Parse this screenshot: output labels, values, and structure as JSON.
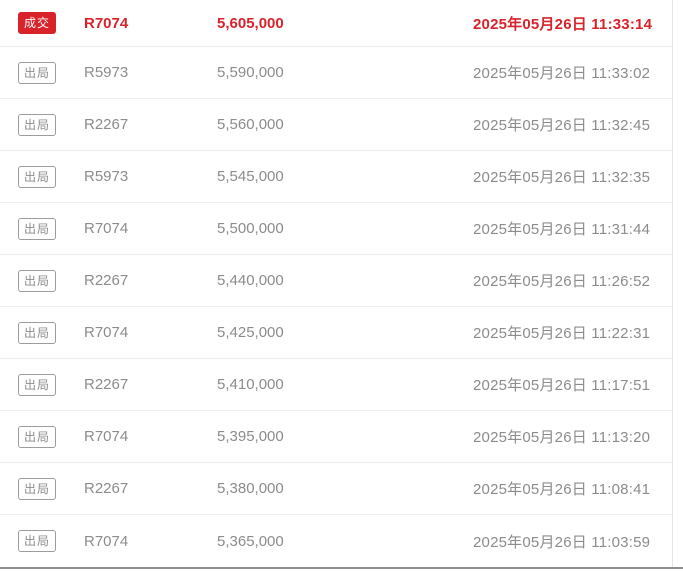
{
  "bid_records": {
    "rows": [
      {
        "status": "成交",
        "type": "deal",
        "bidder": "R7074",
        "price": "5,605,000",
        "time": "2025年05月26日 11:33:14"
      },
      {
        "status": "出局",
        "type": "out",
        "bidder": "R5973",
        "price": "5,590,000",
        "time": "2025年05月26日 11:33:02"
      },
      {
        "status": "出局",
        "type": "out",
        "bidder": "R2267",
        "price": "5,560,000",
        "time": "2025年05月26日 11:32:45"
      },
      {
        "status": "出局",
        "type": "out",
        "bidder": "R5973",
        "price": "5,545,000",
        "time": "2025年05月26日 11:32:35"
      },
      {
        "status": "出局",
        "type": "out",
        "bidder": "R7074",
        "price": "5,500,000",
        "time": "2025年05月26日 11:31:44"
      },
      {
        "status": "出局",
        "type": "out",
        "bidder": "R2267",
        "price": "5,440,000",
        "time": "2025年05月26日 11:26:52"
      },
      {
        "status": "出局",
        "type": "out",
        "bidder": "R7074",
        "price": "5,425,000",
        "time": "2025年05月26日 11:22:31"
      },
      {
        "status": "出局",
        "type": "out",
        "bidder": "R2267",
        "price": "5,410,000",
        "time": "2025年05月26日 11:17:51"
      },
      {
        "status": "出局",
        "type": "out",
        "bidder": "R7074",
        "price": "5,395,000",
        "time": "2025年05月26日 11:13:20"
      },
      {
        "status": "出局",
        "type": "out",
        "bidder": "R2267",
        "price": "5,380,000",
        "time": "2025年05月26日 11:08:41"
      },
      {
        "status": "出局",
        "type": "out",
        "bidder": "R7074",
        "price": "5,365,000",
        "time": "2025年05月26日 11:03:59"
      }
    ]
  },
  "colors": {
    "deal_red": "#d8232b",
    "muted_text": "#8c8c8c",
    "badge_border": "#9c9c9c",
    "divider": "#ececec",
    "panel_right_border": "#e4e4e4",
    "bottom_bar": "#8f8f8f"
  }
}
